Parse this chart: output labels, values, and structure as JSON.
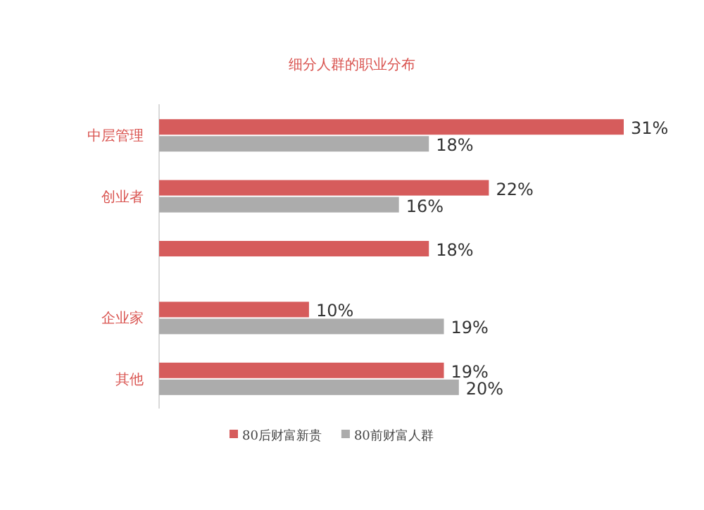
{
  "chart_data": {
    "type": "bar",
    "orientation": "horizontal",
    "title": "细分人群的职业分布",
    "categories": [
      "中层管理",
      "创业者",
      null,
      "企业家",
      "其他"
    ],
    "series": [
      {
        "name": "80后财富新贵",
        "color": "#d65c5c",
        "values": [
          31,
          22,
          18,
          10,
          19
        ],
        "value_labels": [
          "31%",
          "22%",
          "18%",
          "10%",
          "19%"
        ]
      },
      {
        "name": "80前财富人群",
        "color": "#acacac",
        "values": [
          18,
          16,
          null,
          19,
          20
        ],
        "value_labels": [
          "18%",
          "16%",
          null,
          "19%",
          "20%"
        ]
      }
    ],
    "legend": "bottom"
  }
}
